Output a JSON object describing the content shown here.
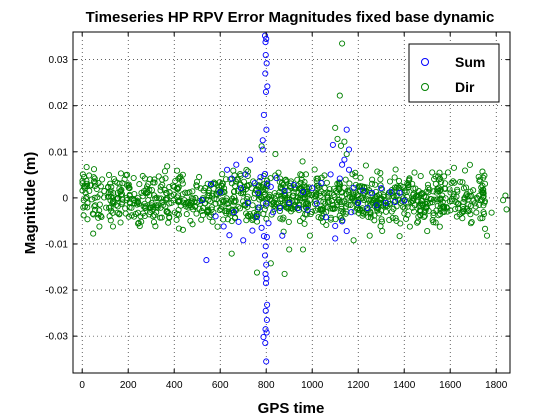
{
  "chart_data": {
    "type": "scatter",
    "title": "Timeseries HP RPV Error Magnitudes fixed base dynamic",
    "xlabel": "GPS time",
    "ylabel": "Magnitude (m)",
    "xlim": [
      -40,
      1860
    ],
    "ylim": [
      -0.038,
      0.036
    ],
    "xticks": [
      0,
      200,
      400,
      600,
      800,
      1000,
      1200,
      1400,
      1600,
      1800
    ],
    "yticks": [
      -0.03,
      -0.02,
      -0.01,
      0,
      0.01,
      0.02,
      0.03
    ],
    "xtick_labels": [
      "0",
      "200",
      "400",
      "600",
      "800",
      "1000",
      "1200",
      "1400",
      "1600",
      "1800"
    ],
    "ytick_labels": [
      "-0.03",
      "-0.02",
      "-0.01",
      "0",
      "0.01",
      "0.02",
      "0.03"
    ],
    "grid": true,
    "legend_position": "top-right",
    "marker": "open-circle",
    "series": [
      {
        "name": "Sum",
        "color": "#0000ff",
        "points": [
          [
            540,
            -0.0135
          ],
          [
            520,
            -0.0005
          ],
          [
            560,
            0.003
          ],
          [
            580,
            -0.004
          ],
          [
            600,
            0.0012
          ],
          [
            615,
            -0.0062
          ],
          [
            630,
            0.0061
          ],
          [
            640,
            -0.0081
          ],
          [
            650,
            0.0042
          ],
          [
            660,
            -0.0031
          ],
          [
            670,
            0.0072
          ],
          [
            680,
            -0.0052
          ],
          [
            690,
            0.0021
          ],
          [
            700,
            -0.0092
          ],
          [
            710,
            0.0051
          ],
          [
            720,
            -0.0011
          ],
          [
            730,
            0.0083
          ],
          [
            740,
            -0.0071
          ],
          [
            750,
            0.0032
          ],
          [
            760,
            -0.0041
          ],
          [
            765,
            0.0011
          ],
          [
            770,
            -0.0021
          ],
          [
            775,
            0.0045
          ],
          [
            780,
            -0.0065
          ],
          [
            785,
            0.0105
          ],
          [
            790,
            -0.0083
          ],
          [
            795,
            0.0052
          ],
          [
            800,
            -0.0012
          ],
          [
            805,
            0.0031
          ],
          [
            810,
            -0.0055
          ],
          [
            820,
            0.0024
          ],
          [
            830,
            -0.0031
          ],
          [
            845,
            0.0043
          ],
          [
            860,
            -0.0022
          ],
          [
            880,
            0.0015
          ],
          [
            900,
            -0.0011
          ],
          [
            920,
            0.0028
          ],
          [
            940,
            -0.0022
          ],
          [
            960,
            0.0013
          ],
          [
            980,
            -0.0026
          ],
          [
            1000,
            0.0021
          ],
          [
            1020,
            -0.0012
          ],
          [
            1040,
            0.0032
          ],
          [
            1060,
            -0.0042
          ],
          [
            1080,
            0.0051
          ],
          [
            1100,
            -0.0061
          ],
          [
            1120,
            0.0042
          ],
          [
            1130,
            -0.0051
          ],
          [
            1140,
            0.0083
          ],
          [
            1150,
            -0.0072
          ],
          [
            1160,
            0.0061
          ],
          [
            1170,
            -0.0031
          ],
          [
            1180,
            0.0022
          ],
          [
            1200,
            -0.0011
          ],
          [
            1220,
            0.0016
          ],
          [
            1240,
            -0.0022
          ],
          [
            1260,
            0.0011
          ],
          [
            1280,
            -0.0016
          ],
          [
            1300,
            0.0021
          ],
          [
            1320,
            -0.0011
          ],
          [
            1340,
            0.0013
          ],
          [
            1360,
            -0.0009
          ],
          [
            1380,
            0.0011
          ],
          [
            1400,
            -0.0006
          ],
          [
            795,
            0.0352
          ],
          [
            800,
            0.0345
          ],
          [
            797,
            0.0338
          ],
          [
            798,
            0.031
          ],
          [
            802,
            0.0292
          ],
          [
            796,
            0.027
          ],
          [
            805,
            0.0242
          ],
          [
            799,
            0.023
          ],
          [
            790,
            0.018
          ],
          [
            785,
            0.0125
          ],
          [
            801,
            0.0148
          ],
          [
            803,
            -0.0085
          ],
          [
            798,
            -0.0105
          ],
          [
            795,
            -0.0125
          ],
          [
            800,
            -0.0145
          ],
          [
            797,
            -0.0165
          ],
          [
            801,
            -0.0175
          ],
          [
            799,
            -0.0185
          ],
          [
            804,
            -0.0232
          ],
          [
            798,
            -0.0245
          ],
          [
            803,
            -0.0265
          ],
          [
            797,
            -0.0285
          ],
          [
            802,
            -0.0292
          ],
          [
            788,
            -0.0302
          ],
          [
            796,
            -0.0315
          ],
          [
            800,
            -0.0355
          ],
          [
            1130,
            0.0072
          ],
          [
            1150,
            0.0148
          ],
          [
            1160,
            0.0105
          ],
          [
            1100,
            -0.0088
          ],
          [
            1090,
            0.0115
          ],
          [
            870,
            -0.0082
          ]
        ]
      },
      {
        "name": "Dir",
        "color": "#008000",
        "points": [
          [
            1130,
            0.0335
          ],
          [
            1120,
            0.0222
          ],
          [
            1100,
            0.0152
          ],
          [
            1110,
            0.0128
          ],
          [
            1140,
            0.0122
          ],
          [
            1125,
            0.0113
          ],
          [
            780,
            0.0112
          ],
          [
            840,
            0.0095
          ],
          [
            1150,
            0.0095
          ],
          [
            760,
            -0.0162
          ],
          [
            880,
            -0.0165
          ],
          [
            820,
            -0.0142
          ],
          [
            650,
            -0.0121
          ],
          [
            900,
            -0.0112
          ],
          [
            960,
            -0.0112
          ],
          [
            990,
            -0.0082
          ],
          [
            1180,
            -0.0092
          ],
          [
            1250,
            -0.0082
          ],
          [
            1380,
            -0.0083
          ],
          [
            1500,
            -0.0072
          ],
          [
            1690,
            -0.0055
          ],
          [
            1760,
            -0.0082
          ],
          [
            1780,
            -0.0032
          ],
          [
            1840,
            0.0005
          ],
          [
            1830,
            -0.0005
          ],
          [
            1845,
            -0.0025
          ]
        ],
        "bulk_band": {
          "x_range": [
            0,
            1760
          ],
          "y_spread": 0.0085,
          "count": 1100,
          "note": "dense noise cloud around zero"
        }
      }
    ],
    "legend": [
      {
        "label": "Sum",
        "color": "#0000ff"
      },
      {
        "label": "Dir",
        "color": "#008000"
      }
    ]
  }
}
